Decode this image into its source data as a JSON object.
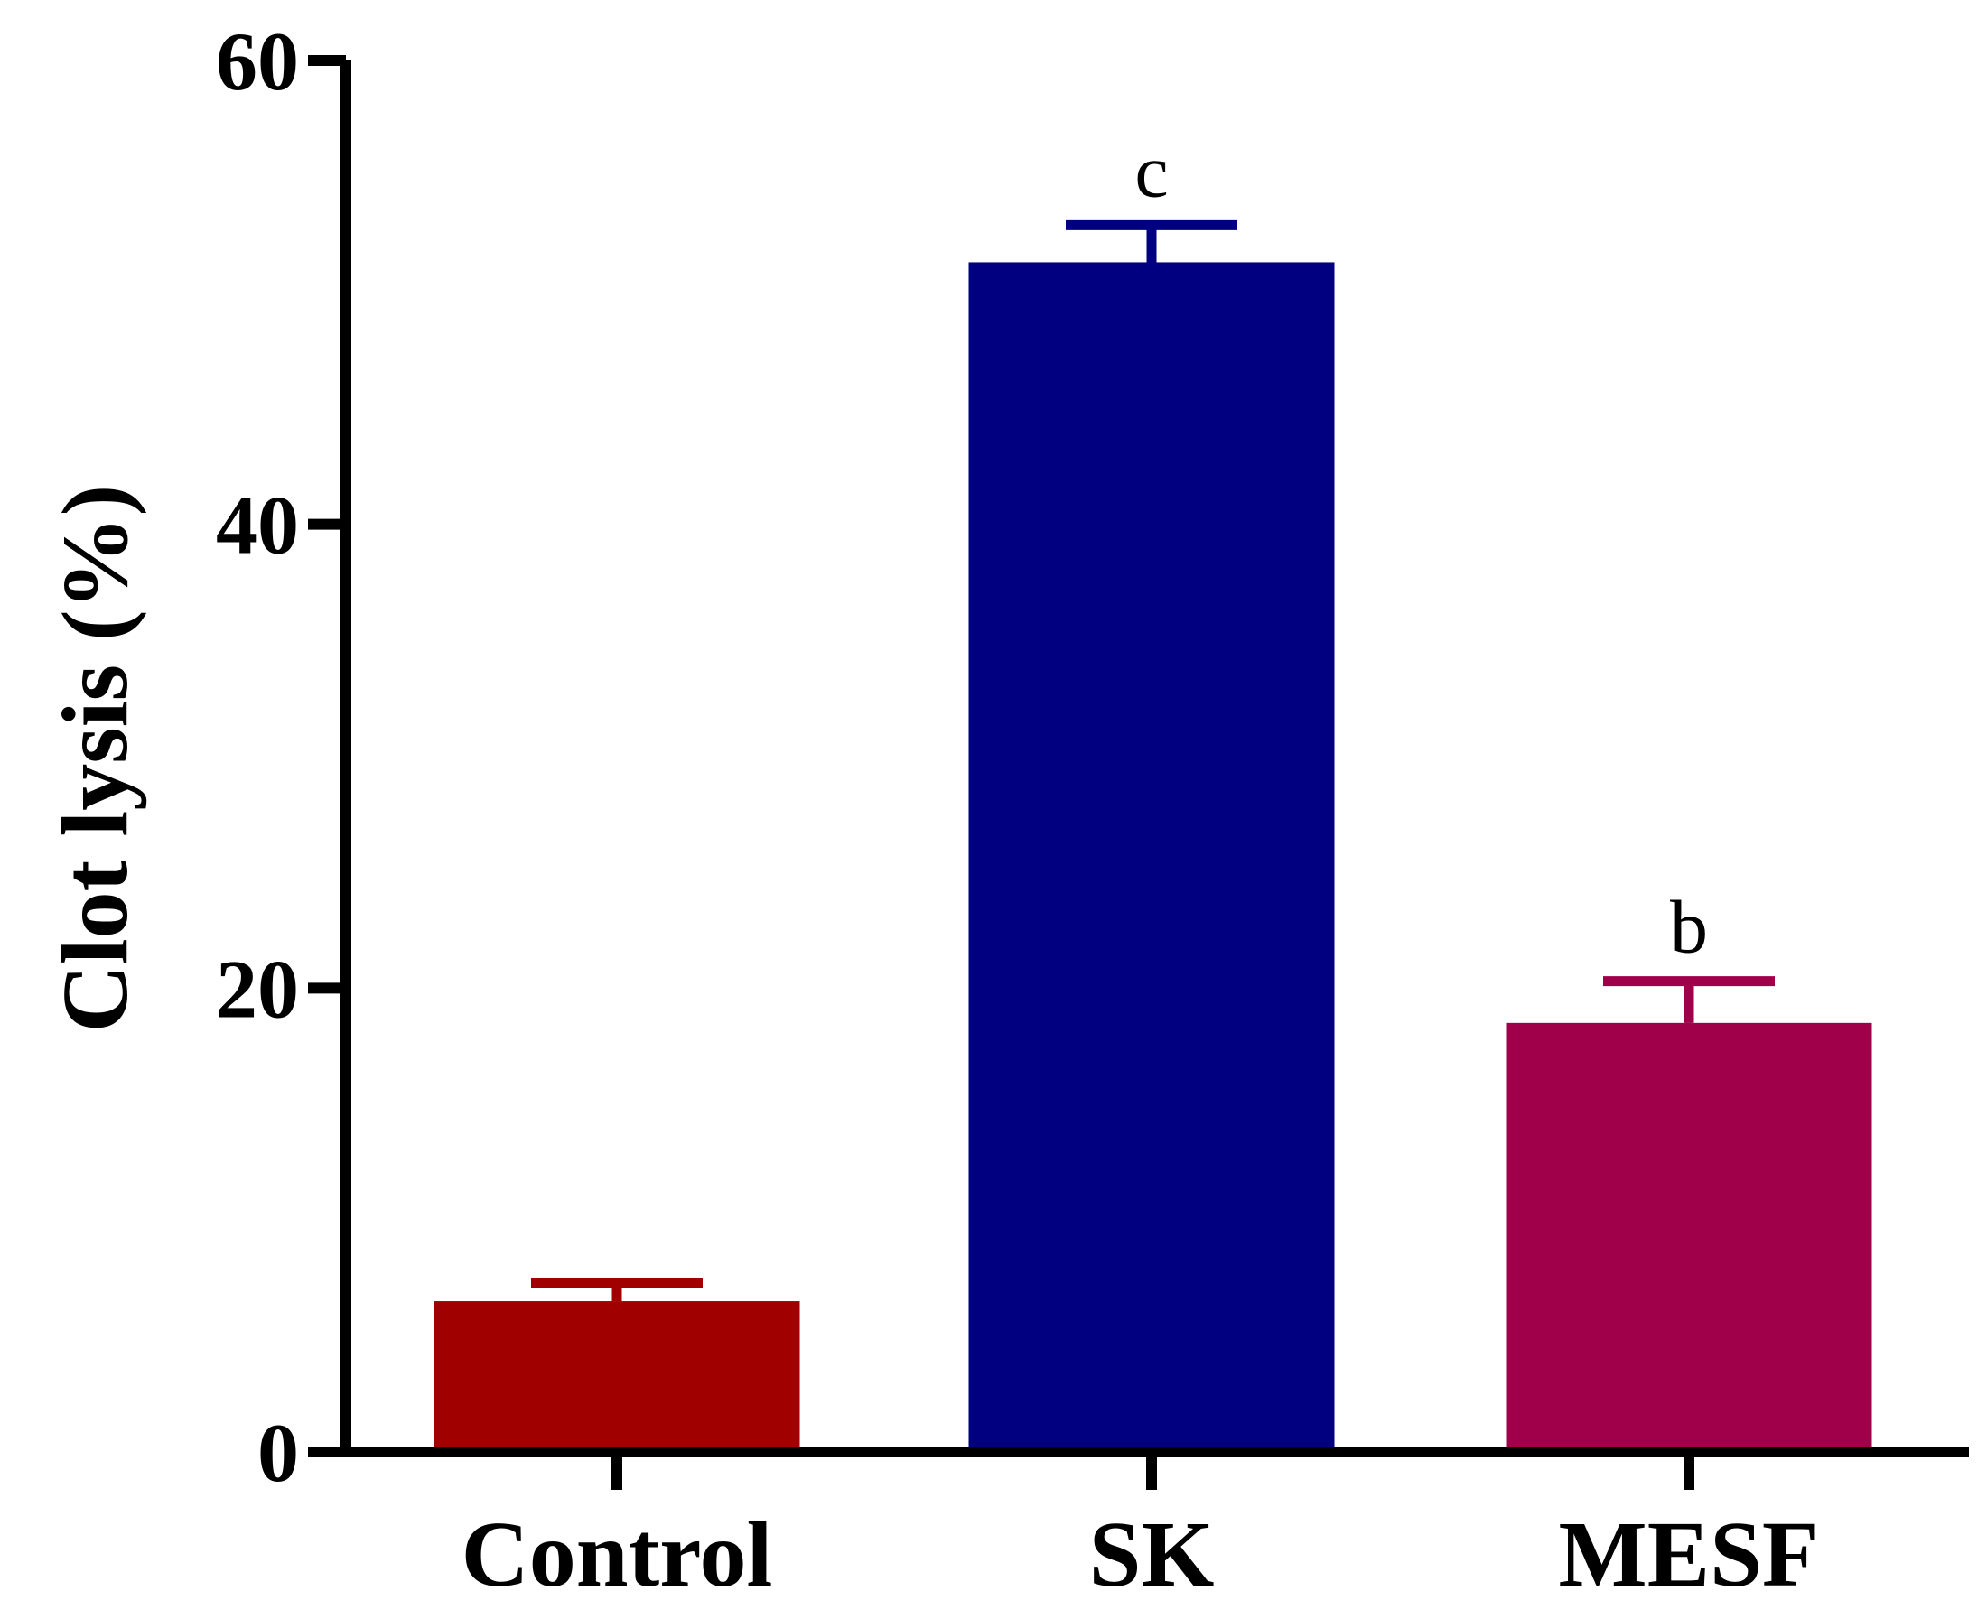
{
  "chart_data": {
    "type": "bar",
    "title": "",
    "xlabel": "",
    "ylabel": "Clot lysis (%)",
    "ylim": [
      0,
      60
    ],
    "yticks": [
      0,
      20,
      40,
      60
    ],
    "grid": false,
    "legend": "none",
    "categories": [
      "Control",
      "SK",
      "MESF"
    ],
    "values": [
      6.5,
      51.3,
      18.5
    ],
    "errors": [
      0.8,
      1.6,
      1.8
    ],
    "significance_labels": [
      "",
      "c",
      "b"
    ],
    "colors": [
      "#a00000",
      "#000080",
      "#a0004a"
    ]
  }
}
